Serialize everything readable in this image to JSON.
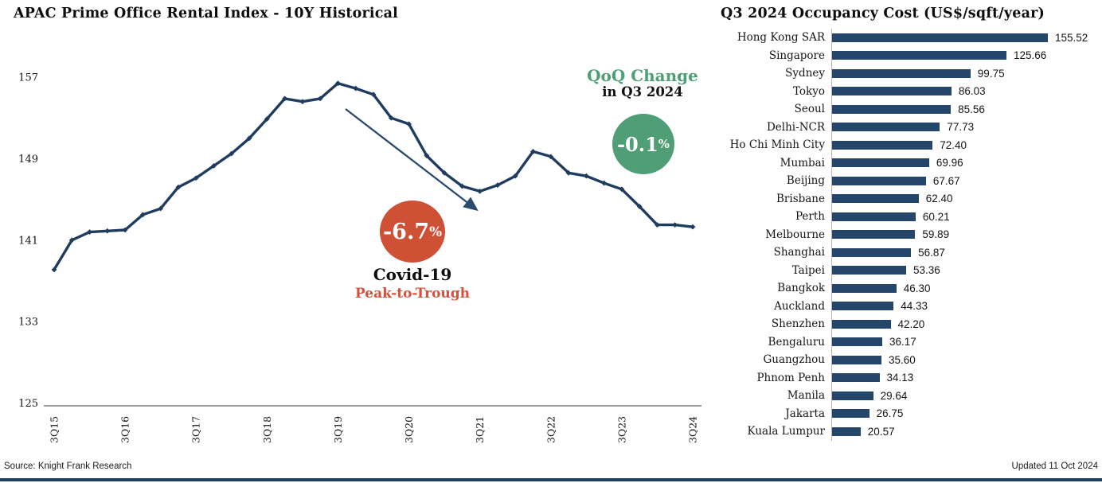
{
  "page": {
    "source": "Source: Knight Frank Research",
    "updated": "Updated 11 Oct 2024"
  },
  "colors": {
    "line_navy": "#1f3c5f",
    "bar_navy": "#24466a",
    "green": "#4f9e76",
    "red": "#ce5136",
    "axis_gray": "#b5b5b5"
  },
  "chart_data": [
    {
      "type": "line",
      "title": "APAC Prime Office Rental Index - 10Y Historical",
      "xlabel": "",
      "ylabel": "",
      "ylim": [
        125,
        158
      ],
      "yticks": [
        157,
        149,
        141,
        133,
        125
      ],
      "grid": false,
      "legend": "none",
      "x": [
        "3Q15",
        "4Q15",
        "1Q16",
        "2Q16",
        "3Q16",
        "4Q16",
        "1Q17",
        "2Q17",
        "3Q17",
        "4Q17",
        "1Q18",
        "2Q18",
        "3Q18",
        "4Q18",
        "1Q19",
        "2Q19",
        "3Q19",
        "4Q19",
        "1Q20",
        "2Q20",
        "3Q20",
        "4Q20",
        "1Q21",
        "2Q21",
        "3Q21",
        "4Q21",
        "1Q22",
        "2Q22",
        "3Q22",
        "4Q22",
        "1Q23",
        "2Q23",
        "3Q23",
        "4Q23",
        "1Q24",
        "2Q24",
        "3Q24"
      ],
      "values": [
        138.1,
        141.0,
        141.8,
        141.9,
        142.0,
        143.5,
        144.1,
        146.2,
        147.1,
        148.3,
        149.5,
        151.0,
        152.9,
        154.9,
        154.6,
        154.9,
        156.4,
        155.9,
        155.3,
        153.0,
        152.4,
        149.3,
        147.6,
        146.3,
        145.8,
        146.4,
        147.3,
        149.7,
        149.2,
        147.6,
        147.3,
        146.6,
        146.0,
        144.3,
        142.5,
        142.5,
        142.3
      ],
      "xticks": [
        "3Q15",
        "3Q16",
        "3Q17",
        "3Q18",
        "3Q19",
        "3Q20",
        "3Q21",
        "3Q22",
        "3Q23",
        "3Q24"
      ],
      "annotations": {
        "qoq_title": "QoQ Change",
        "qoq_subtitle": "in Q3 2024",
        "qoq_value": "-0.1%",
        "covid_value": "-6.7%",
        "covid_title": "Covid-19",
        "covid_subtitle": "Peak-to-Trough"
      }
    },
    {
      "type": "bar",
      "title": "Q3 2024 Occupancy Cost (US$/sqft/year)",
      "orientation": "horizontal",
      "xlim": [
        0,
        160
      ],
      "categories": [
        "Hong Kong SAR",
        "Singapore",
        "Sydney",
        "Tokyo",
        "Seoul",
        "Delhi-NCR",
        "Ho Chi Minh City",
        "Mumbai",
        "Beijing",
        "Brisbane",
        "Perth",
        "Melbourne",
        "Shanghai",
        "Taipei",
        "Bangkok",
        "Auckland",
        "Shenzhen",
        "Bengaluru",
        "Guangzhou",
        "Phnom Penh",
        "Manila",
        "Jakarta",
        "Kuala Lumpur"
      ],
      "values": [
        155.52,
        125.66,
        99.75,
        86.03,
        85.56,
        77.73,
        72.4,
        69.96,
        67.67,
        62.4,
        60.21,
        59.89,
        56.87,
        53.36,
        46.3,
        44.33,
        42.2,
        36.17,
        35.6,
        34.13,
        29.64,
        26.75,
        20.57
      ]
    }
  ]
}
